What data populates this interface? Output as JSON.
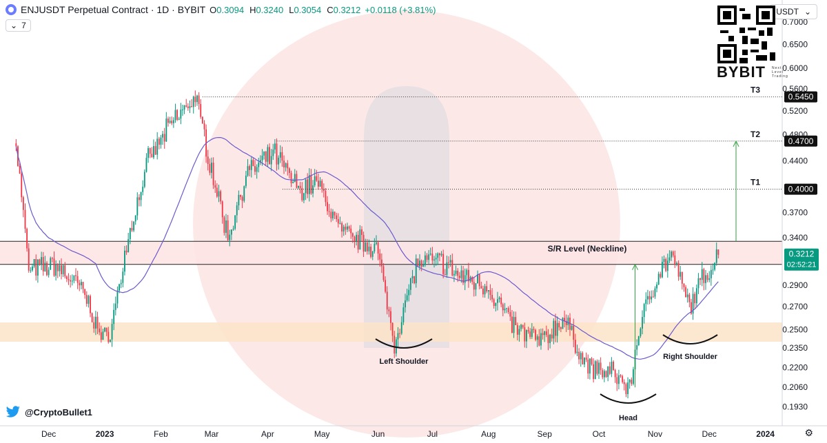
{
  "header": {
    "symbol": "ENJUSDT Perpetual Contract · 1D · BYBIT",
    "open_label": "O",
    "open": "0.3094",
    "high_label": "H",
    "high": "0.3240",
    "low_label": "L",
    "low": "0.3054",
    "close_label": "C",
    "close": "0.3212",
    "change": "+0.0118 (+3.81%)"
  },
  "indicator": {
    "length": "7",
    "chevron_icon": "chevron-down-icon"
  },
  "currency": {
    "label": "USDT"
  },
  "watermark": {
    "brand": "BYBIT",
    "tagline": "Next Level Trading",
    "handle": "@CryptoBullet1"
  },
  "colors": {
    "up": "#089981",
    "down": "#f23645",
    "ma": "#6a5acd",
    "neckline_zone": "#fde4e4",
    "support_zone": "#fbe3c8",
    "target_arrow": "#2e9d3d"
  },
  "chart_data": {
    "type": "candlestick",
    "y_axis": {
      "scale": "log",
      "ticks": [
        "0.7000",
        "0.6500",
        "0.6000",
        "0.5600",
        "0.5200",
        "0.4800",
        "0.4400",
        "0.3700",
        "0.3400",
        "0.2900",
        "0.2700",
        "0.2500",
        "0.2350",
        "0.2200",
        "0.2060",
        "0.1930"
      ]
    },
    "x_axis": {
      "ticks": [
        "Dec",
        "2023",
        "Feb",
        "Mar",
        "Apr",
        "May",
        "Jun",
        "Jul",
        "Aug",
        "Sep",
        "Oct",
        "Nov",
        "Dec",
        "2024"
      ]
    },
    "price_path": [
      [
        "2022-11-13",
        0.47
      ],
      [
        "2022-11-20",
        0.305
      ],
      [
        "2022-12-05",
        0.31
      ],
      [
        "2022-12-20",
        0.285
      ],
      [
        "2022-12-31",
        0.24
      ],
      [
        "2023-01-05",
        0.255
      ],
      [
        "2023-01-14",
        0.34
      ],
      [
        "2023-01-25",
        0.44
      ],
      [
        "2023-02-07",
        0.5
      ],
      [
        "2023-02-20",
        0.545
      ],
      [
        "2023-02-28",
        0.44
      ],
      [
        "2023-03-10",
        0.34
      ],
      [
        "2023-03-20",
        0.42
      ],
      [
        "2023-04-05",
        0.45
      ],
      [
        "2023-04-18",
        0.4
      ],
      [
        "2023-04-28",
        0.41
      ],
      [
        "2023-05-12",
        0.345
      ],
      [
        "2023-05-31",
        0.33
      ],
      [
        "2023-06-10",
        0.24
      ],
      [
        "2023-06-22",
        0.31
      ],
      [
        "2023-07-05",
        0.315
      ],
      [
        "2023-07-15",
        0.3
      ],
      [
        "2023-07-31",
        0.29
      ],
      [
        "2023-08-16",
        0.25
      ],
      [
        "2023-08-31",
        0.24
      ],
      [
        "2023-09-11",
        0.26
      ],
      [
        "2023-09-25",
        0.22
      ],
      [
        "2023-10-10",
        0.215
      ],
      [
        "2023-10-18",
        0.205
      ],
      [
        "2023-10-23",
        0.25
      ],
      [
        "2023-11-02",
        0.3
      ],
      [
        "2023-11-10",
        0.32
      ],
      [
        "2023-11-20",
        0.27
      ],
      [
        "2023-11-27",
        0.295
      ],
      [
        "2023-12-06",
        0.3212
      ]
    ],
    "levels": [
      {
        "label": "T3",
        "price": "0.5450"
      },
      {
        "label": "T2",
        "price": "0.4700"
      },
      {
        "label": "T1",
        "price": "0.4000"
      }
    ],
    "neckline": {
      "label": "S/R Level   (Neckline)",
      "top": 0.336,
      "bottom": 0.311
    },
    "support_zone": {
      "top": 0.256,
      "bottom": 0.24
    },
    "current_price": {
      "price": "0.3212",
      "countdown": "02:52:21"
    },
    "annotations": [
      {
        "label": "Left Shoulder",
        "date": "2023-06-15",
        "price": 0.245
      },
      {
        "label": "Head",
        "date": "2023-10-20",
        "price": 0.206
      },
      {
        "label": "Right Shoulder",
        "date": "2023-11-26",
        "price": 0.255
      }
    ],
    "moving_average": {
      "length": "7"
    }
  }
}
